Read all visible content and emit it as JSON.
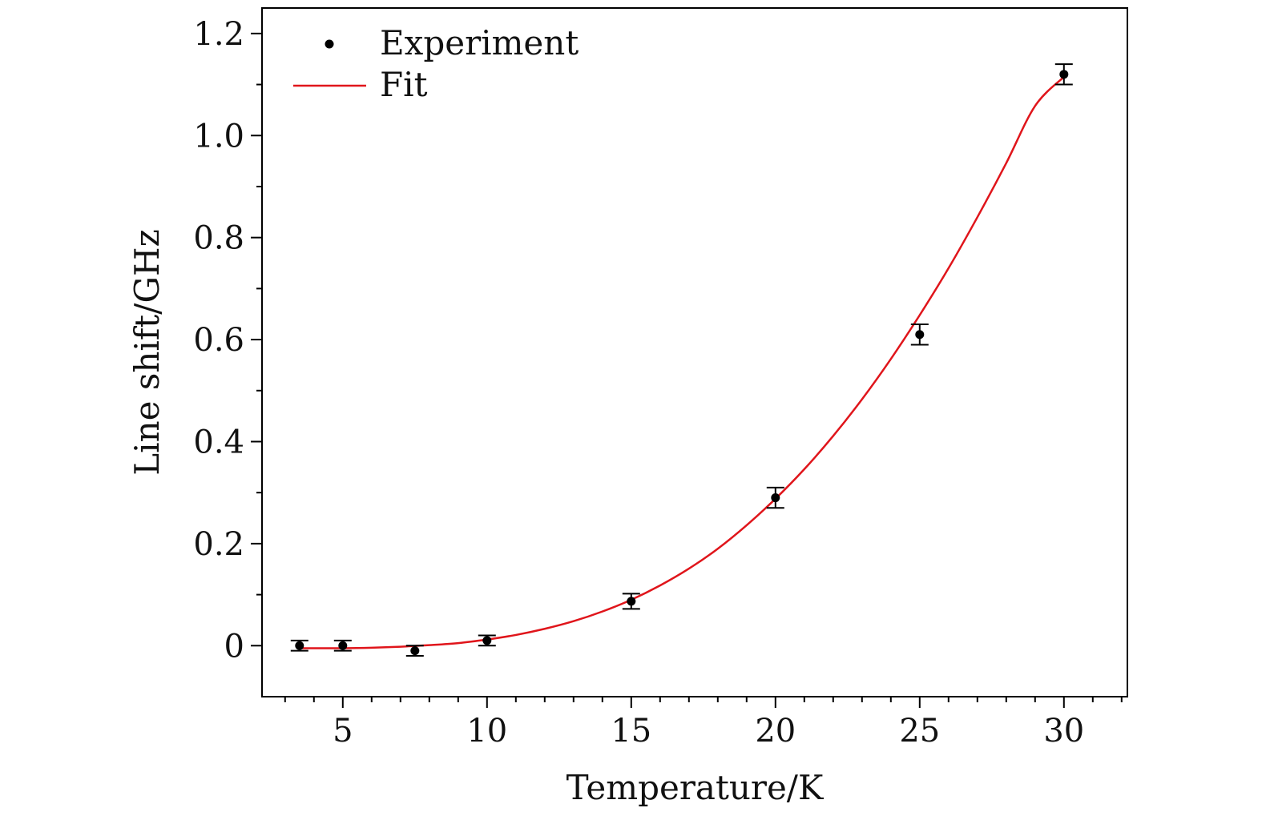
{
  "chart_data": {
    "type": "scatter",
    "title": "",
    "xlabel": "Temperature/K",
    "ylabel": "Line shift/GHz",
    "xlim": [
      2.2,
      32.2
    ],
    "ylim": [
      -0.1,
      1.25
    ],
    "x_ticks": [
      5,
      10,
      15,
      20,
      25,
      30
    ],
    "x_tick_labels": [
      "5",
      "10",
      "15",
      "20",
      "25",
      "30"
    ],
    "x_minor_step": 1,
    "y_ticks": [
      0,
      0.2,
      0.4,
      0.6,
      0.8,
      1.0,
      1.2
    ],
    "y_tick_labels": [
      "0",
      "0.2",
      "0.4",
      "0.6",
      "0.8",
      "1.0",
      "1.2"
    ],
    "y_minor_step": 0.1,
    "grid": false,
    "legend_position": "top-left",
    "series": [
      {
        "name": "Experiment",
        "kind": "points-with-errorbars",
        "color": "#000000",
        "x": [
          3.5,
          5,
          7.5,
          10,
          15,
          20,
          25,
          30
        ],
        "y": [
          0.0,
          0.0,
          -0.01,
          0.01,
          0.087,
          0.29,
          0.61,
          1.12
        ],
        "error": [
          0.01,
          0.01,
          0.01,
          0.01,
          0.015,
          0.02,
          0.02,
          0.02
        ]
      },
      {
        "name": "Fit",
        "kind": "line",
        "color": "#e0151b",
        "x": [
          3.5,
          5,
          6,
          7,
          8,
          9,
          10,
          11,
          12,
          13,
          14,
          15,
          16,
          17,
          18,
          19,
          20,
          21,
          22,
          23,
          24,
          25,
          26,
          27,
          28,
          29,
          30
        ],
        "y": [
          -0.005,
          -0.005,
          -0.004,
          -0.002,
          0.001,
          0.005,
          0.012,
          0.021,
          0.033,
          0.048,
          0.067,
          0.09,
          0.118,
          0.151,
          0.19,
          0.236,
          0.288,
          0.346,
          0.411,
          0.483,
          0.562,
          0.648,
          0.74,
          0.84,
          0.946,
          1.058,
          1.115
        ]
      }
    ]
  }
}
